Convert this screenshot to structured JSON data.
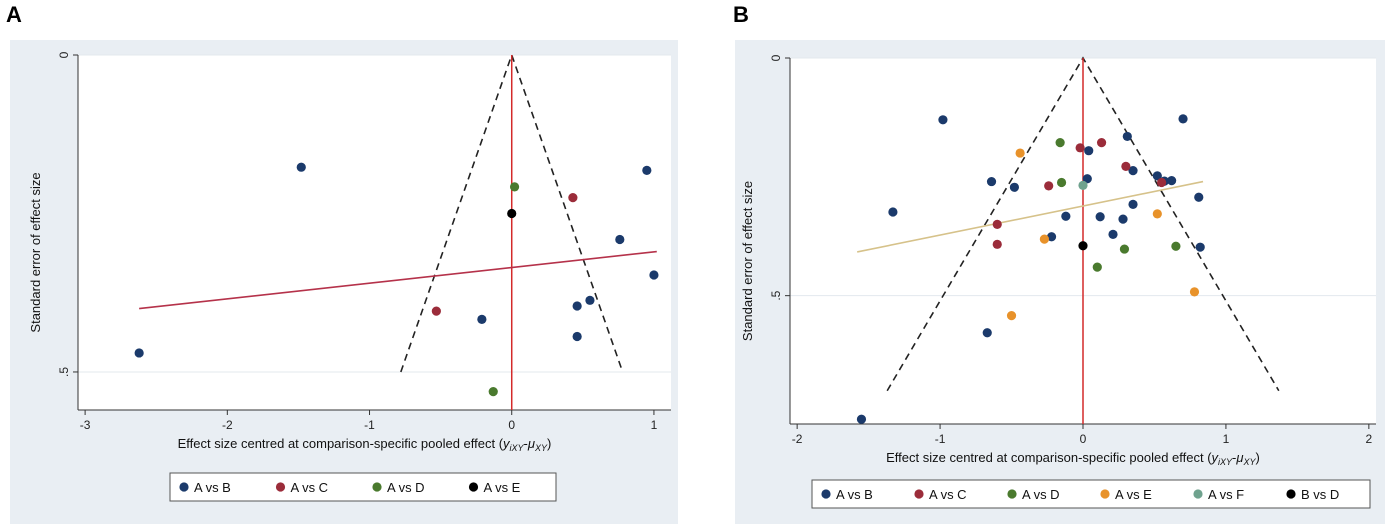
{
  "chart_data": [
    {
      "panel": "A",
      "type": "scatter",
      "title": "",
      "xlabel": "Effect size centred at comparison-specific pooled effect (yixy-μxy)",
      "xlabel_parts": [
        "Effect size centred at comparison-specific pooled effect (",
        "y",
        "iXY",
        "-",
        "μ",
        "XY",
        ")"
      ],
      "ylabel": "Standard error of effect size",
      "xlim": [
        -3.05,
        1.12
      ],
      "ylim": [
        0,
        0.56
      ],
      "xticks": [
        -3,
        -2,
        -1,
        0,
        1
      ],
      "xtick_labels": [
        "-3",
        "-2",
        "-1",
        "0",
        "1"
      ],
      "yticks": [
        0,
        0.5
      ],
      "ytick_labels": [
        "0",
        ".5"
      ],
      "grid": true,
      "legend": "bottom",
      "funnel": {
        "apex": [
          0,
          0
        ],
        "left": [
          -0.78,
          0.5
        ],
        "right": [
          0.78,
          0.5
        ]
      },
      "reference_line_x": 0,
      "regression": {
        "from": [
          -2.62,
          0.4
        ],
        "to": [
          1.02,
          0.31
        ],
        "color": "#b5324a"
      },
      "series": [
        {
          "name": "A vs B",
          "color": "#1b3a6b",
          "points": [
            [
              -2.62,
              0.47
            ],
            [
              -1.48,
              0.177
            ],
            [
              -0.21,
              0.417
            ],
            [
              0.46,
              0.444
            ],
            [
              0.46,
              0.396
            ],
            [
              0.55,
              0.387
            ],
            [
              0.76,
              0.291
            ],
            [
              0.95,
              0.182
            ],
            [
              1.0,
              0.347
            ]
          ]
        },
        {
          "name": "A vs C",
          "color": "#9b2c3a",
          "points": [
            [
              -0.53,
              0.404
            ],
            [
              0.43,
              0.225
            ]
          ]
        },
        {
          "name": "A vs D",
          "color": "#4a7a2e",
          "points": [
            [
              0.02,
              0.208
            ],
            [
              -0.13,
              0.531
            ]
          ]
        },
        {
          "name": "A vs E",
          "color": "#000000",
          "points": [
            [
              0.0,
              0.25
            ]
          ]
        }
      ]
    },
    {
      "panel": "B",
      "type": "scatter",
      "title": "",
      "xlabel": "Effect size centred at comparison-specific pooled effect (yixy-μxy)",
      "xlabel_parts": [
        "Effect size centred at comparison-specific pooled effect (",
        "y",
        "iXY",
        "-",
        "μ",
        "XY",
        ")"
      ],
      "ylabel": "Standard error of effect size",
      "xlim": [
        -2.05,
        2.05
      ],
      "ylim": [
        0,
        0.77
      ],
      "xticks": [
        -2,
        -1,
        0,
        1,
        2
      ],
      "xtick_labels": [
        "-2",
        "-1",
        "0",
        "1",
        "2"
      ],
      "yticks": [
        0,
        0.5
      ],
      "ytick_labels": [
        "0",
        ".5"
      ],
      "grid": true,
      "legend": "bottom",
      "funnel": {
        "apex": [
          0,
          0
        ],
        "left": [
          -1.37,
          0.7
        ],
        "right": [
          1.37,
          0.7
        ]
      },
      "reference_line_x": 0,
      "regression": {
        "from": [
          -1.58,
          0.408
        ],
        "to": [
          0.84,
          0.26
        ],
        "color": "#d6c28a"
      },
      "series": [
        {
          "name": "A vs B",
          "color": "#1b3a6b",
          "points": [
            [
              -1.55,
              0.76
            ],
            [
              -1.33,
              0.324
            ],
            [
              -0.98,
              0.13
            ],
            [
              -0.67,
              0.578
            ],
            [
              -0.64,
              0.26
            ],
            [
              -0.48,
              0.272
            ],
            [
              -0.22,
              0.376
            ],
            [
              -0.12,
              0.333
            ],
            [
              0.03,
              0.254
            ],
            [
              0.04,
              0.195
            ],
            [
              0.12,
              0.334
            ],
            [
              0.21,
              0.371
            ],
            [
              0.28,
              0.339
            ],
            [
              0.31,
              0.165
            ],
            [
              0.35,
              0.237
            ],
            [
              0.35,
              0.308
            ],
            [
              0.52,
              0.248
            ],
            [
              0.57,
              0.259
            ],
            [
              0.62,
              0.258
            ],
            [
              0.7,
              0.128
            ],
            [
              0.81,
              0.293
            ],
            [
              0.82,
              0.398
            ]
          ]
        },
        {
          "name": "A vs C",
          "color": "#9b2c3a",
          "points": [
            [
              -0.6,
              0.35
            ],
            [
              -0.6,
              0.392
            ],
            [
              -0.24,
              0.269
            ],
            [
              -0.02,
              0.189
            ],
            [
              0.13,
              0.178
            ],
            [
              0.3,
              0.228
            ],
            [
              0.55,
              0.262
            ]
          ]
        },
        {
          "name": "A vs D",
          "color": "#4a7a2e",
          "points": [
            [
              -0.16,
              0.178
            ],
            [
              -0.15,
              0.262
            ],
            [
              0.1,
              0.44
            ],
            [
              0.29,
              0.402
            ],
            [
              0.65,
              0.396
            ]
          ]
        },
        {
          "name": "A vs E",
          "color": "#e8922a",
          "points": [
            [
              -0.44,
              0.2
            ],
            [
              -0.27,
              0.381
            ],
            [
              -0.5,
              0.542
            ],
            [
              0.52,
              0.328
            ],
            [
              0.78,
              0.492
            ]
          ]
        },
        {
          "name": "A vs F",
          "color": "#6fa28e",
          "points": [
            [
              0.0,
              0.268
            ]
          ]
        },
        {
          "name": "B vs D",
          "color": "#000000",
          "points": [
            [
              0.0,
              0.395
            ]
          ]
        }
      ]
    }
  ]
}
